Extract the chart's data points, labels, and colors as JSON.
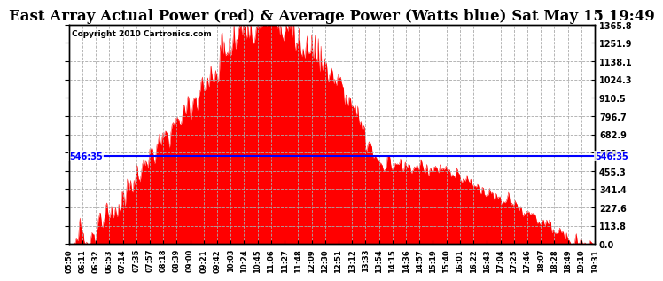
{
  "title": "East Array Actual Power (red) & Average Power (Watts blue) Sat May 15 19:49",
  "copyright": "Copyright 2010 Cartronics.com",
  "avg_power": 546.35,
  "ymax": 1365.8,
  "ymin": 0.0,
  "yticks": [
    0.0,
    113.8,
    227.6,
    341.4,
    455.3,
    569.1,
    682.9,
    796.7,
    910.5,
    1024.3,
    1138.1,
    1251.9,
    1365.8
  ],
  "fill_color": "#FF0000",
  "line_color": "#0000FF",
  "bg_color": "#FFFFFF",
  "x_labels": [
    "05:50",
    "06:11",
    "06:32",
    "06:53",
    "07:14",
    "07:35",
    "07:57",
    "08:18",
    "08:39",
    "09:00",
    "09:21",
    "09:42",
    "10:03",
    "10:24",
    "10:45",
    "11:06",
    "11:27",
    "11:48",
    "12:09",
    "12:30",
    "12:51",
    "13:12",
    "13:33",
    "13:54",
    "14:15",
    "14:36",
    "14:57",
    "15:19",
    "15:40",
    "16:01",
    "16:22",
    "16:43",
    "17:04",
    "17:25",
    "17:46",
    "18:07",
    "18:28",
    "18:49",
    "19:10",
    "19:31"
  ],
  "title_fontsize": 12,
  "avg_label": "546:35"
}
